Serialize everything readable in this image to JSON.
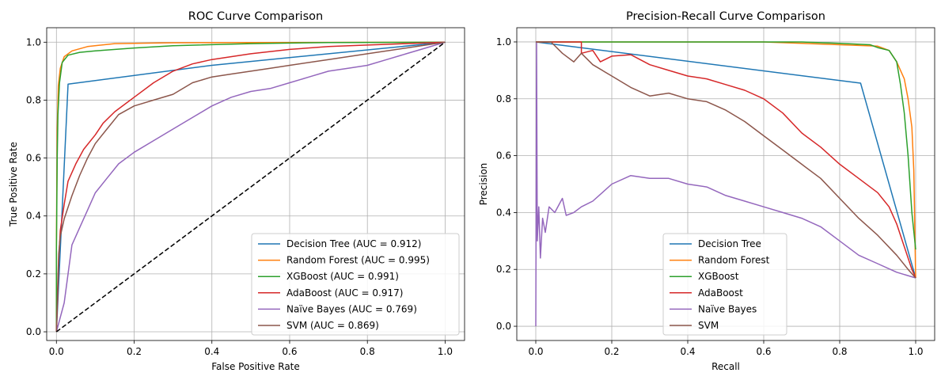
{
  "chart_data": [
    {
      "type": "line",
      "title": "ROC Curve Comparison",
      "xlabel": "False Positive Rate",
      "ylabel": "True Positive Rate",
      "xlim": [
        -0.025,
        1.05
      ],
      "ylim": [
        -0.03,
        1.05
      ],
      "xticks": [
        "0.0",
        "0.2",
        "0.4",
        "0.6",
        "0.8",
        "1.0"
      ],
      "yticks": [
        "0.0",
        "0.2",
        "0.4",
        "0.6",
        "0.8",
        "1.0"
      ],
      "grid": true,
      "legend": "lower-right",
      "series": [
        {
          "name": "Decision Tree (AUC = 0.912)",
          "color": "#1f77b4",
          "points": [
            [
              0,
              0
            ],
            [
              0.03,
              0.855
            ],
            [
              0.4,
              0.92
            ],
            [
              1,
              1
            ]
          ]
        },
        {
          "name": "Random Forest (AUC = 0.995)",
          "color": "#ff7f0e",
          "points": [
            [
              0,
              0
            ],
            [
              0,
              0.3
            ],
            [
              0.002,
              0.7
            ],
            [
              0.005,
              0.85
            ],
            [
              0.01,
              0.91
            ],
            [
              0.02,
              0.95
            ],
            [
              0.04,
              0.97
            ],
            [
              0.08,
              0.985
            ],
            [
              0.15,
              0.995
            ],
            [
              0.3,
              0.998
            ],
            [
              1,
              1
            ]
          ]
        },
        {
          "name": "XGBoost (AUC = 0.991)",
          "color": "#2ca02c",
          "points": [
            [
              0,
              0
            ],
            [
              0,
              0.28
            ],
            [
              0.002,
              0.6
            ],
            [
              0.004,
              0.75
            ],
            [
              0.008,
              0.86
            ],
            [
              0.015,
              0.93
            ],
            [
              0.03,
              0.955
            ],
            [
              0.06,
              0.965
            ],
            [
              0.1,
              0.97
            ],
            [
              0.2,
              0.98
            ],
            [
              0.3,
              0.988
            ],
            [
              0.5,
              0.995
            ],
            [
              0.7,
              0.999
            ],
            [
              1,
              1
            ]
          ]
        },
        {
          "name": "AdaBoost (AUC = 0.917)",
          "color": "#d62728",
          "points": [
            [
              0,
              0
            ],
            [
              0.003,
              0.12
            ],
            [
              0.006,
              0.25
            ],
            [
              0.01,
              0.35
            ],
            [
              0.02,
              0.44
            ],
            [
              0.03,
              0.52
            ],
            [
              0.05,
              0.58
            ],
            [
              0.07,
              0.63
            ],
            [
              0.1,
              0.68
            ],
            [
              0.12,
              0.72
            ],
            [
              0.15,
              0.76
            ],
            [
              0.2,
              0.81
            ],
            [
              0.25,
              0.86
            ],
            [
              0.3,
              0.9
            ],
            [
              0.35,
              0.925
            ],
            [
              0.4,
              0.94
            ],
            [
              0.5,
              0.96
            ],
            [
              0.6,
              0.975
            ],
            [
              0.7,
              0.985
            ],
            [
              0.8,
              0.99
            ],
            [
              0.9,
              0.995
            ],
            [
              1,
              1
            ]
          ]
        },
        {
          "name": "Naïve Bayes (AUC = 0.769)",
          "color": "#9467bd",
          "points": [
            [
              0,
              0
            ],
            [
              0.01,
              0.05
            ],
            [
              0.02,
              0.1
            ],
            [
              0.03,
              0.2
            ],
            [
              0.04,
              0.3
            ],
            [
              0.06,
              0.36
            ],
            [
              0.08,
              0.42
            ],
            [
              0.1,
              0.48
            ],
            [
              0.13,
              0.53
            ],
            [
              0.16,
              0.58
            ],
            [
              0.2,
              0.62
            ],
            [
              0.25,
              0.66
            ],
            [
              0.3,
              0.7
            ],
            [
              0.35,
              0.74
            ],
            [
              0.4,
              0.78
            ],
            [
              0.45,
              0.81
            ],
            [
              0.5,
              0.83
            ],
            [
              0.55,
              0.84
            ],
            [
              0.6,
              0.86
            ],
            [
              0.65,
              0.88
            ],
            [
              0.7,
              0.9
            ],
            [
              0.75,
              0.91
            ],
            [
              0.8,
              0.92
            ],
            [
              0.85,
              0.94
            ],
            [
              0.9,
              0.96
            ],
            [
              0.95,
              0.98
            ],
            [
              1,
              1
            ]
          ]
        },
        {
          "name": "SVM (AUC = 0.869)",
          "color": "#8c564b",
          "points": [
            [
              0,
              0
            ],
            [
              0.003,
              0.15
            ],
            [
              0.006,
              0.27
            ],
            [
              0.01,
              0.33
            ],
            [
              0.02,
              0.39
            ],
            [
              0.04,
              0.47
            ],
            [
              0.06,
              0.54
            ],
            [
              0.08,
              0.6
            ],
            [
              0.1,
              0.65
            ],
            [
              0.13,
              0.7
            ],
            [
              0.16,
              0.75
            ],
            [
              0.2,
              0.78
            ],
            [
              0.25,
              0.8
            ],
            [
              0.3,
              0.82
            ],
            [
              0.35,
              0.86
            ],
            [
              0.4,
              0.88
            ],
            [
              0.45,
              0.89
            ],
            [
              0.5,
              0.9
            ],
            [
              0.55,
              0.91
            ],
            [
              0.6,
              0.92
            ],
            [
              0.7,
              0.94
            ],
            [
              0.8,
              0.96
            ],
            [
              0.9,
              0.98
            ],
            [
              1,
              1
            ]
          ]
        },
        {
          "name": "",
          "color": "#000000",
          "dashed": true,
          "points": [
            [
              0,
              0
            ],
            [
              1,
              1
            ]
          ]
        }
      ]
    },
    {
      "type": "line",
      "title": "Precision-Recall Curve Comparison",
      "xlabel": "Recall",
      "ylabel": "Precision",
      "xlim": [
        -0.05,
        1.05
      ],
      "ylim": [
        -0.05,
        1.05
      ],
      "xticks": [
        "0.0",
        "0.2",
        "0.4",
        "0.6",
        "0.8",
        "1.0"
      ],
      "yticks": [
        "0.0",
        "0.2",
        "0.4",
        "0.6",
        "0.8",
        "1.0"
      ],
      "grid": true,
      "legend": "lower-center",
      "series": [
        {
          "name": "Decision Tree",
          "color": "#1f77b4",
          "points": [
            [
              0,
              1
            ],
            [
              0.855,
              0.855
            ],
            [
              1,
              0.17
            ]
          ]
        },
        {
          "name": "Random Forest",
          "color": "#ff7f0e",
          "points": [
            [
              0,
              1
            ],
            [
              0.3,
              1
            ],
            [
              0.6,
              1
            ],
            [
              0.8,
              0.99
            ],
            [
              0.9,
              0.985
            ],
            [
              0.93,
              0.97
            ],
            [
              0.95,
              0.93
            ],
            [
              0.97,
              0.87
            ],
            [
              0.98,
              0.8
            ],
            [
              0.99,
              0.7
            ],
            [
              0.995,
              0.55
            ],
            [
              1,
              0.17
            ]
          ]
        },
        {
          "name": "XGBoost",
          "color": "#2ca02c",
          "points": [
            [
              0,
              1
            ],
            [
              0.5,
              1
            ],
            [
              0.7,
              1
            ],
            [
              0.8,
              0.995
            ],
            [
              0.88,
              0.99
            ],
            [
              0.9,
              0.98
            ],
            [
              0.93,
              0.97
            ],
            [
              0.95,
              0.93
            ],
            [
              0.96,
              0.85
            ],
            [
              0.97,
              0.75
            ],
            [
              0.98,
              0.6
            ],
            [
              0.99,
              0.4
            ],
            [
              1,
              0.27
            ]
          ]
        },
        {
          "name": "AdaBoost",
          "color": "#d62728",
          "points": [
            [
              0,
              1
            ],
            [
              0.05,
              1
            ],
            [
              0.12,
              1
            ],
            [
              0.12,
              0.96
            ],
            [
              0.15,
              0.97
            ],
            [
              0.17,
              0.93
            ],
            [
              0.2,
              0.95
            ],
            [
              0.25,
              0.955
            ],
            [
              0.3,
              0.92
            ],
            [
              0.35,
              0.9
            ],
            [
              0.4,
              0.88
            ],
            [
              0.45,
              0.87
            ],
            [
              0.5,
              0.85
            ],
            [
              0.55,
              0.83
            ],
            [
              0.6,
              0.8
            ],
            [
              0.65,
              0.75
            ],
            [
              0.7,
              0.68
            ],
            [
              0.75,
              0.63
            ],
            [
              0.8,
              0.57
            ],
            [
              0.85,
              0.52
            ],
            [
              0.9,
              0.47
            ],
            [
              0.93,
              0.42
            ],
            [
              0.95,
              0.36
            ],
            [
              0.97,
              0.28
            ],
            [
              0.99,
              0.2
            ],
            [
              1,
              0.17
            ]
          ]
        },
        {
          "name": "Naïve Bayes",
          "color": "#9467bd",
          "points": [
            [
              0,
              0
            ],
            [
              0.002,
              1
            ],
            [
              0.004,
              0.3
            ],
            [
              0.008,
              0.42
            ],
            [
              0.012,
              0.24
            ],
            [
              0.018,
              0.38
            ],
            [
              0.025,
              0.33
            ],
            [
              0.035,
              0.42
            ],
            [
              0.05,
              0.4
            ],
            [
              0.07,
              0.45
            ],
            [
              0.08,
              0.39
            ],
            [
              0.1,
              0.4
            ],
            [
              0.12,
              0.42
            ],
            [
              0.15,
              0.44
            ],
            [
              0.2,
              0.5
            ],
            [
              0.25,
              0.53
            ],
            [
              0.3,
              0.52
            ],
            [
              0.35,
              0.52
            ],
            [
              0.4,
              0.5
            ],
            [
              0.45,
              0.49
            ],
            [
              0.5,
              0.46
            ],
            [
              0.55,
              0.44
            ],
            [
              0.6,
              0.42
            ],
            [
              0.65,
              0.4
            ],
            [
              0.7,
              0.38
            ],
            [
              0.75,
              0.35
            ],
            [
              0.8,
              0.3
            ],
            [
              0.85,
              0.25
            ],
            [
              0.9,
              0.22
            ],
            [
              0.95,
              0.19
            ],
            [
              1,
              0.17
            ]
          ]
        },
        {
          "name": "SVM",
          "color": "#8c564b",
          "points": [
            [
              0,
              1
            ],
            [
              0.04,
              1
            ],
            [
              0.07,
              0.96
            ],
            [
              0.1,
              0.93
            ],
            [
              0.12,
              0.96
            ],
            [
              0.15,
              0.92
            ],
            [
              0.2,
              0.88
            ],
            [
              0.25,
              0.84
            ],
            [
              0.3,
              0.81
            ],
            [
              0.35,
              0.82
            ],
            [
              0.4,
              0.8
            ],
            [
              0.45,
              0.79
            ],
            [
              0.5,
              0.76
            ],
            [
              0.55,
              0.72
            ],
            [
              0.6,
              0.67
            ],
            [
              0.65,
              0.62
            ],
            [
              0.7,
              0.57
            ],
            [
              0.75,
              0.52
            ],
            [
              0.8,
              0.45
            ],
            [
              0.85,
              0.38
            ],
            [
              0.9,
              0.32
            ],
            [
              0.95,
              0.25
            ],
            [
              0.98,
              0.2
            ],
            [
              1,
              0.17
            ]
          ]
        }
      ]
    }
  ]
}
